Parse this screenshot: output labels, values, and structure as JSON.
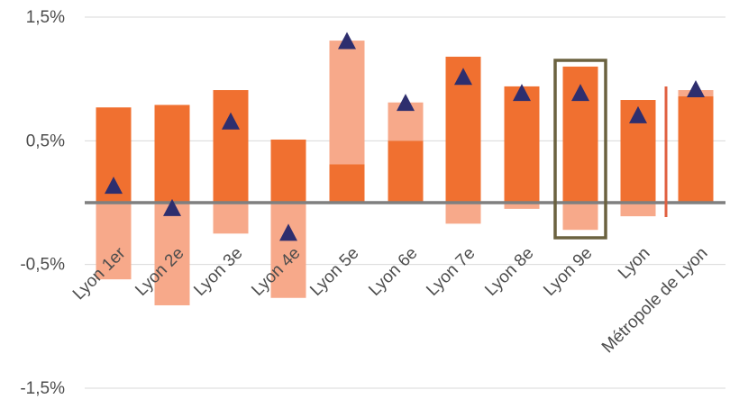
{
  "chart_data": {
    "type": "bar",
    "ylim": [
      -1.5,
      1.5
    ],
    "y_ticks": [
      "1,5%",
      "0,5%",
      "-0,5%",
      "-1,5%"
    ],
    "y_tick_values": [
      1.5,
      0.5,
      -0.5,
      -1.5
    ],
    "categories": [
      "Lyon 1er",
      "Lyon 2e",
      "Lyon 3e",
      "Lyon 4e",
      "Lyon 5e",
      "Lyon 6e",
      "Lyon 7e",
      "Lyon 8e",
      "Lyon 9e",
      "Lyon",
      "Métropole de Lyon"
    ],
    "series": [
      {
        "values": [
          0.77,
          0.79,
          0.91,
          0.51,
          0.31,
          0.5,
          1.18,
          0.94,
          1.1,
          0.83,
          0.86
        ]
      },
      {
        "values": [
          -0.62,
          -0.83,
          -0.25,
          -0.77,
          1.31,
          0.81,
          -0.17,
          -0.05,
          -0.22,
          -0.11,
          0.91
        ]
      },
      {
        "values": [
          0.13,
          -0.05,
          0.65,
          -0.25,
          1.3,
          0.8,
          1.01,
          0.88,
          0.88,
          0.7,
          0.91
        ]
      }
    ],
    "highlighted_category": "Lyon 9e",
    "grid": true,
    "colors": {
      "bar": "#f07030",
      "range": "#f7a98a",
      "marker": "#2e2e6e",
      "zero_line": "#7f7f7f",
      "gridline": "#d9d9d9",
      "highlight_box": "#6b6240",
      "separator": "#e06040",
      "axis_text": "#4d4d4d"
    }
  }
}
